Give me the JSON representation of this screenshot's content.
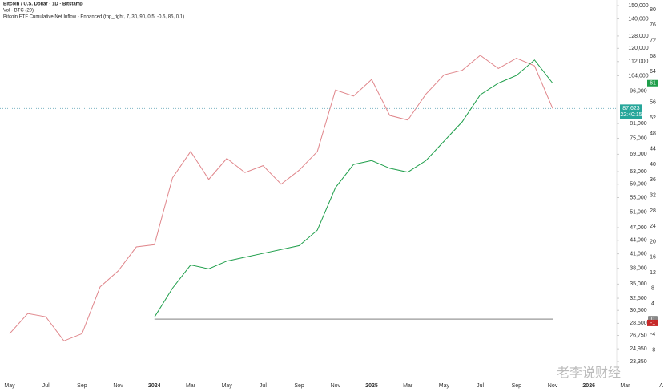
{
  "header": {
    "volume_label": "Vol · BTC (20)",
    "countdown": "22:40:15",
    "watermark": "老李说财经"
  },
  "chart_data": {
    "type": "line",
    "title": "Bitcoin / U.S. Dollar · 1D · Bitstamp",
    "categories": [
      "May",
      null,
      "Jul",
      null,
      "Sep",
      null,
      "Nov",
      null,
      "2024",
      null,
      "Mar",
      null,
      "May",
      null,
      "Jul",
      null,
      "Sep",
      null,
      "Nov",
      null,
      "2025",
      null,
      "Mar",
      null,
      "May",
      null,
      "Jul",
      null,
      "Sep",
      null,
      "Nov",
      null,
      "2026",
      null,
      "Mar",
      null,
      "A"
    ],
    "series": [
      {
        "name": "Bitcoin / U.S. Dollar · 1D · Bitstamp",
        "color": "#e0868b",
        "values": [
          27000,
          30000,
          29500,
          26000,
          27000,
          34500,
          37500,
          42500,
          43000,
          61000,
          70000,
          60500,
          67500,
          62700,
          65000,
          59000,
          63500,
          70000,
          96500,
          93500,
          102000,
          84500,
          82500,
          94500,
          104500,
          107000,
          115700,
          108000,
          114000,
          109500,
          87623,
          null,
          null,
          null,
          null,
          null,
          null
        ],
        "value_labels": [
          null,
          null,
          null,
          null,
          null,
          null,
          null,
          null,
          null,
          null,
          null,
          null,
          null,
          null,
          null,
          null,
          null,
          null,
          null,
          null,
          null,
          null,
          null,
          null,
          null,
          null,
          null,
          null,
          null,
          null,
          "87,623",
          null,
          null,
          null,
          null,
          null,
          null
        ]
      },
      {
        "name": "Bitcoin ETF Cumulative Net Inflow - Enhanced (top_right, 7, 30, 90, 0.5, -0.5, 85, 0.1)",
        "color": "#1e9e4a",
        "axis": "y2",
        "values": [
          null,
          null,
          null,
          null,
          null,
          null,
          null,
          null,
          0.5,
          8,
          14,
          13,
          15,
          16,
          17,
          18,
          19,
          23,
          34,
          40,
          41,
          39,
          38,
          41,
          46,
          51,
          58,
          61,
          63,
          67,
          61,
          null,
          null,
          null,
          null,
          null,
          null
        ]
      }
    ],
    "current_flow": -1,
    "log_scale": true,
    "ylim": [
      21560,
      154500
    ],
    "yticks": [
      {
        "value": 150000,
        "label": "150,000"
      },
      {
        "value": 140000,
        "label": "140,000"
      },
      {
        "value": 128000,
        "label": "128,000"
      },
      {
        "value": 120000,
        "label": "120,000"
      },
      {
        "value": 112000,
        "label": "112,000"
      },
      {
        "value": 104000,
        "label": "104,000"
      },
      {
        "value": 96000,
        "label": "96,000"
      },
      {
        "value": 81000,
        "label": "81,000"
      },
      {
        "value": 75000,
        "label": "75,000"
      },
      {
        "value": 69000,
        "label": "69,000"
      },
      {
        "value": 63000,
        "label": "63,000"
      },
      {
        "value": 59000,
        "label": "59,000"
      },
      {
        "value": 55000,
        "label": "55,000"
      },
      {
        "value": 51000,
        "label": "51,000"
      },
      {
        "value": 47000,
        "label": "47,000"
      },
      {
        "value": 44000,
        "label": "44,000"
      },
      {
        "value": 41000,
        "label": "41,000"
      },
      {
        "value": 38000,
        "label": "38,000"
      },
      {
        "value": 35000,
        "label": "35,000"
      },
      {
        "value": 32500,
        "label": "32,500"
      },
      {
        "value": 30500,
        "label": "30,500"
      },
      {
        "value": 28500,
        "label": "28,500"
      },
      {
        "value": 26750,
        "label": "26,750"
      },
      {
        "value": 24950,
        "label": "24,950"
      },
      {
        "value": 23350,
        "label": "23,350"
      }
    ],
    "y2lim": [
      -14.9,
      82.5
    ],
    "y2ticks": [
      80,
      76,
      72,
      68,
      64,
      56,
      52,
      48,
      44,
      40,
      36,
      32,
      28,
      24,
      20,
      16,
      12,
      8,
      4,
      0,
      -4,
      -8
    ]
  }
}
